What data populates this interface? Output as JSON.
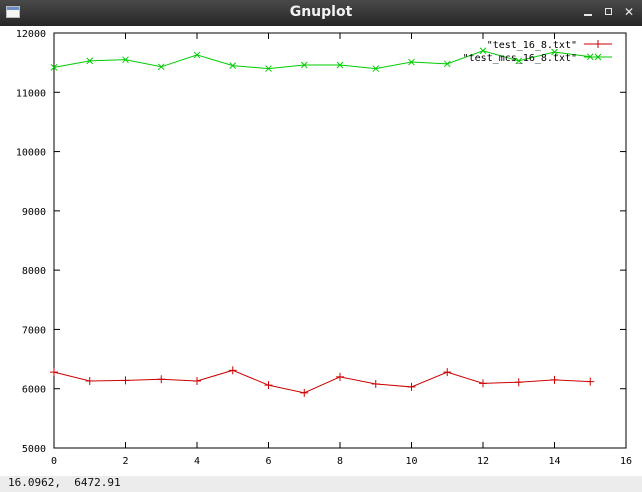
{
  "window": {
    "title": "Gnuplot"
  },
  "status": {
    "coordinates": "16.0962,  6472.91"
  },
  "icons": {
    "app": "window-icon",
    "minimize": "minimize-icon",
    "maximize": "maximize-icon",
    "close": "close-icon"
  },
  "chart_data": {
    "type": "line",
    "xlim": [
      0,
      16
    ],
    "ylim": [
      5000,
      12000
    ],
    "x_ticks": [
      0,
      2,
      4,
      6,
      8,
      10,
      12,
      14,
      16
    ],
    "y_ticks": [
      5000,
      6000,
      7000,
      8000,
      9000,
      10000,
      11000,
      12000
    ],
    "legend_position": "top-right",
    "grid": false,
    "series": [
      {
        "name": "\"test_16_8.txt\"",
        "color": "#cc0000",
        "marker": "plus",
        "x": [
          0,
          1,
          2,
          3,
          4,
          5,
          6,
          7,
          8,
          9,
          10,
          11,
          12,
          13,
          14,
          15
        ],
        "values": [
          6280,
          6130,
          6140,
          6160,
          6130,
          6310,
          6060,
          5930,
          6200,
          6080,
          6030,
          6280,
          6090,
          6110,
          6150,
          6120
        ]
      },
      {
        "name": "\"test_mcs_16_8.txt\"",
        "color": "#00cc00",
        "marker": "cross",
        "x": [
          0,
          1,
          2,
          3,
          4,
          5,
          6,
          7,
          8,
          9,
          10,
          11,
          12,
          13,
          14,
          15
        ],
        "values": [
          11420,
          11530,
          11550,
          11430,
          11630,
          11450,
          11400,
          11460,
          11460,
          11400,
          11510,
          11480,
          11700,
          11530,
          11680,
          11600
        ]
      }
    ]
  }
}
